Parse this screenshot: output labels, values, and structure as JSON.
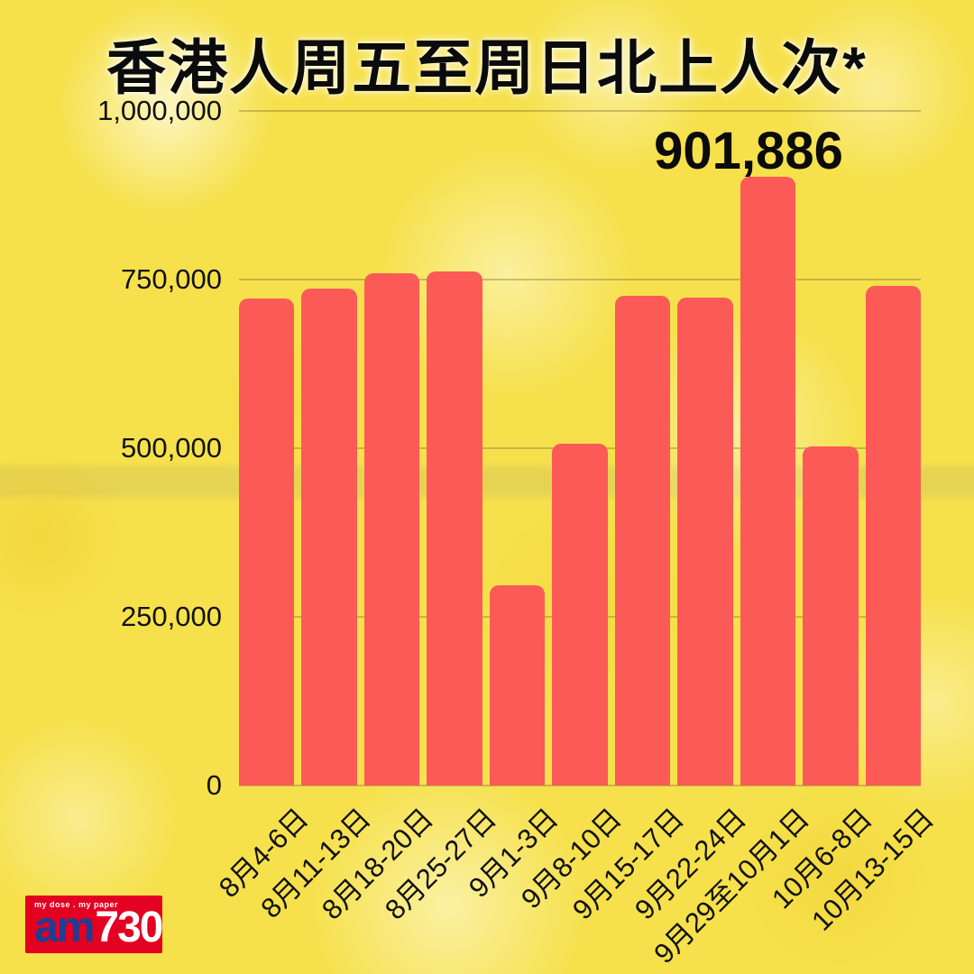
{
  "title": "香港人周五至周日北上人次*",
  "chart_data": {
    "type": "bar",
    "title": "香港人周五至周日北上人次*",
    "categories": [
      "8月4-6日",
      "8月11-13日",
      "8月18-20日",
      "8月25-27日",
      "9月1-3日",
      "9月8-10日",
      "9月15-17日",
      "9月22-24日",
      "9月29至10月1日",
      "10月6-8日",
      "10月13-15日"
    ],
    "values": [
      722000,
      736000,
      760000,
      762000,
      297000,
      507000,
      726000,
      723000,
      901886,
      503000,
      741000
    ],
    "ylim": [
      0,
      1000000
    ],
    "yticks": [
      1000000,
      750000,
      500000,
      250000,
      0
    ],
    "ytick_labels": [
      "1,000,000",
      "750,000",
      "500,000",
      "250,000",
      "0"
    ],
    "grid": true,
    "legend": "none",
    "bar_color": "#FB5A57",
    "annotation": {
      "text": "901,886",
      "category": "9月29至10月1日",
      "category_index": 8
    }
  },
  "colors": {
    "background_yellow": "#F6E14C",
    "bar_red": "#FB5A57",
    "text_black": "#0B0B0B",
    "logo_red": "#E30021",
    "logo_blue": "#1E3D96",
    "logo_white": "#FFFFFF"
  },
  "logo": {
    "slogan": "my dose . my paper",
    "am": "am",
    "number": "730"
  }
}
